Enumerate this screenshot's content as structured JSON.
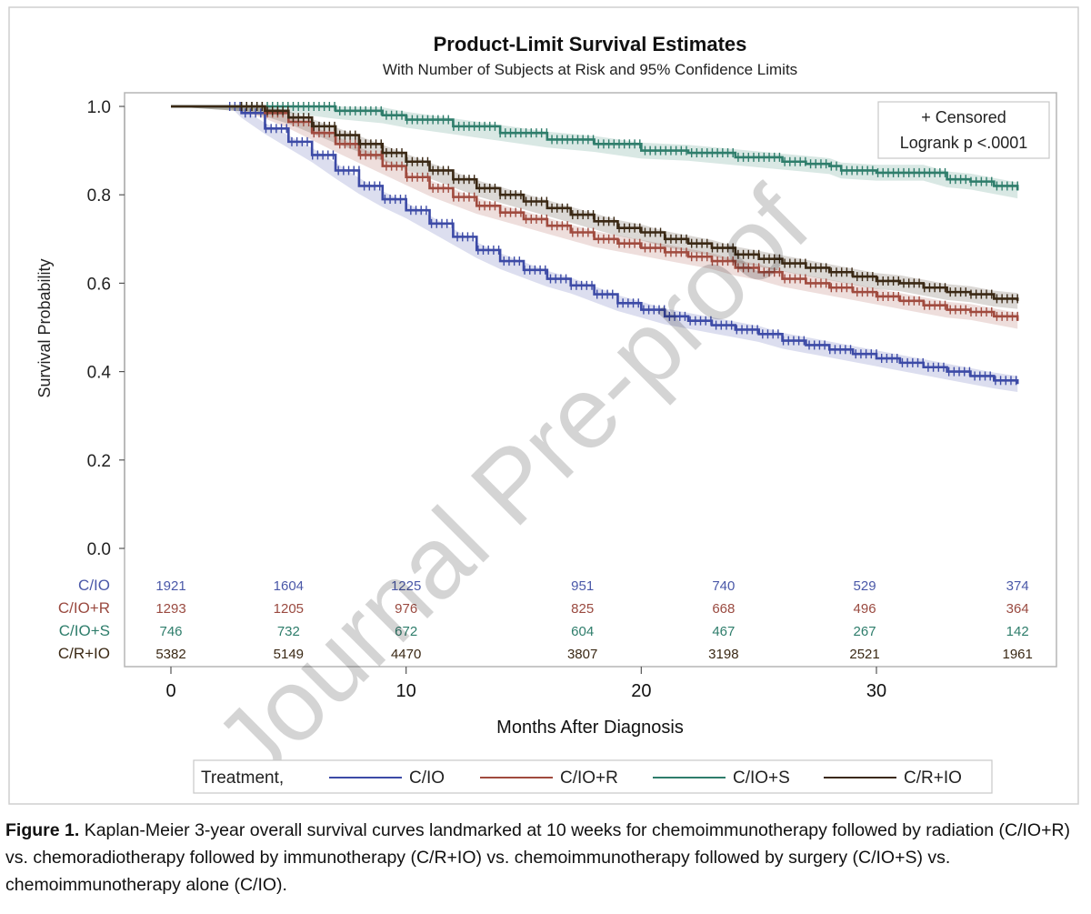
{
  "chart_data": {
    "type": "line",
    "title": "Product-Limit Survival Estimates",
    "subtitle": "With Number of Subjects at Risk and 95% Confidence Limits",
    "xlabel": "Months After Diagnosis",
    "ylabel": "Survival Probability",
    "xlim": [
      0,
      36
    ],
    "ylim": [
      0,
      1.0
    ],
    "xticks": [
      0,
      10,
      20,
      30
    ],
    "yticks": [
      0.0,
      0.2,
      0.4,
      0.6,
      0.8,
      1.0
    ],
    "xtick_labels": [
      "0",
      "10",
      "20",
      "30"
    ],
    "ytick_labels": [
      "0.0",
      "0.2",
      "0.4",
      "0.6",
      "0.8",
      "1.0"
    ],
    "grid": false,
    "legend_position": "bottom",
    "legend_title": "Treatment,",
    "inset_legend": {
      "position": "top-right",
      "lines": [
        "+ Censored",
        "Logrank p <.0001"
      ]
    },
    "series": [
      {
        "name": "C/IO",
        "color": "#3c4aa6",
        "x": [
          0,
          2.5,
          3,
          4,
          5,
          6,
          7,
          8,
          9,
          10,
          11,
          12,
          13,
          14,
          15,
          16,
          17,
          18,
          19,
          20,
          21,
          22,
          23,
          24,
          25,
          26,
          27,
          28,
          29,
          30,
          31,
          32,
          33,
          34,
          35,
          36
        ],
        "y": [
          1.0,
          1.0,
          0.985,
          0.95,
          0.92,
          0.89,
          0.855,
          0.82,
          0.79,
          0.765,
          0.735,
          0.705,
          0.675,
          0.65,
          0.63,
          0.61,
          0.595,
          0.575,
          0.555,
          0.54,
          0.525,
          0.515,
          0.505,
          0.495,
          0.485,
          0.47,
          0.46,
          0.45,
          0.44,
          0.43,
          0.42,
          0.41,
          0.4,
          0.39,
          0.38,
          0.372
        ]
      },
      {
        "name": "C/IO+R",
        "color": "#a04a3e",
        "x": [
          0,
          3,
          4,
          5,
          6,
          7,
          8,
          9,
          10,
          11,
          12,
          13,
          14,
          15,
          16,
          17,
          18,
          19,
          20,
          21,
          22,
          23,
          24,
          25,
          26,
          27,
          28,
          29,
          30,
          31,
          32,
          33,
          34,
          35,
          36
        ],
        "y": [
          1.0,
          1.0,
          0.985,
          0.965,
          0.94,
          0.915,
          0.89,
          0.865,
          0.84,
          0.815,
          0.795,
          0.775,
          0.76,
          0.745,
          0.73,
          0.715,
          0.7,
          0.69,
          0.68,
          0.67,
          0.66,
          0.65,
          0.635,
          0.625,
          0.61,
          0.6,
          0.59,
          0.58,
          0.57,
          0.56,
          0.55,
          0.54,
          0.535,
          0.525,
          0.515
        ]
      },
      {
        "name": "C/IO+S",
        "color": "#2e7d6b",
        "x": [
          0,
          3,
          5,
          7,
          9,
          10,
          12,
          14,
          16,
          18,
          20,
          22,
          24,
          26,
          27,
          28,
          28.5,
          30,
          32,
          33,
          34,
          35,
          36
        ],
        "y": [
          1.0,
          1.0,
          1.0,
          0.99,
          0.98,
          0.97,
          0.955,
          0.94,
          0.925,
          0.915,
          0.9,
          0.895,
          0.885,
          0.875,
          0.87,
          0.865,
          0.855,
          0.85,
          0.85,
          0.835,
          0.83,
          0.82,
          0.81
        ]
      },
      {
        "name": "C/R+IO",
        "color": "#3a2814",
        "x": [
          0,
          3,
          4,
          5,
          6,
          7,
          8,
          9,
          10,
          11,
          12,
          13,
          14,
          15,
          16,
          17,
          18,
          19,
          20,
          21,
          22,
          23,
          24,
          25,
          26,
          27,
          28,
          29,
          30,
          31,
          32,
          33,
          34,
          35,
          36
        ],
        "y": [
          1.0,
          1.0,
          0.99,
          0.975,
          0.955,
          0.935,
          0.915,
          0.895,
          0.875,
          0.855,
          0.835,
          0.815,
          0.8,
          0.785,
          0.77,
          0.755,
          0.74,
          0.725,
          0.715,
          0.7,
          0.69,
          0.68,
          0.665,
          0.655,
          0.645,
          0.635,
          0.625,
          0.615,
          0.605,
          0.6,
          0.59,
          0.58,
          0.575,
          0.565,
          0.56
        ]
      }
    ],
    "at_risk": {
      "x": [
        0,
        5,
        10,
        17.5,
        23.5,
        29.5,
        36
      ],
      "rows": [
        {
          "label": "C/IO",
          "color": "#4a58a8",
          "values": [
            "1921",
            "1604",
            "1225",
            "951",
            "740",
            "529",
            "374"
          ]
        },
        {
          "label": "C/IO+R",
          "color": "#9a4a40",
          "values": [
            "1293",
            "1205",
            "976",
            "825",
            "668",
            "496",
            "364"
          ]
        },
        {
          "label": "C/IO+S",
          "color": "#2e7d6b",
          "values": [
            "746",
            "732",
            "672",
            "604",
            "467",
            "267",
            "142"
          ]
        },
        {
          "label": "C/R+IO",
          "color": "#3a2814",
          "values": [
            "5382",
            "5149",
            "4470",
            "3807",
            "3198",
            "2521",
            "1961"
          ]
        }
      ]
    }
  },
  "watermark": "Journal Pre-proof",
  "caption": {
    "label": "Figure 1.",
    "text": " Kaplan-Meier 3-year overall survival curves landmarked at 10 weeks for chemoimmunotherapy followed by radiation (C/IO+R) vs. chemoradiotherapy followed by immunotherapy (C/R+IO) vs. chemoimmunotherapy followed by surgery (C/IO+S) vs. chemoimmunotherapy alone (C/IO)."
  }
}
